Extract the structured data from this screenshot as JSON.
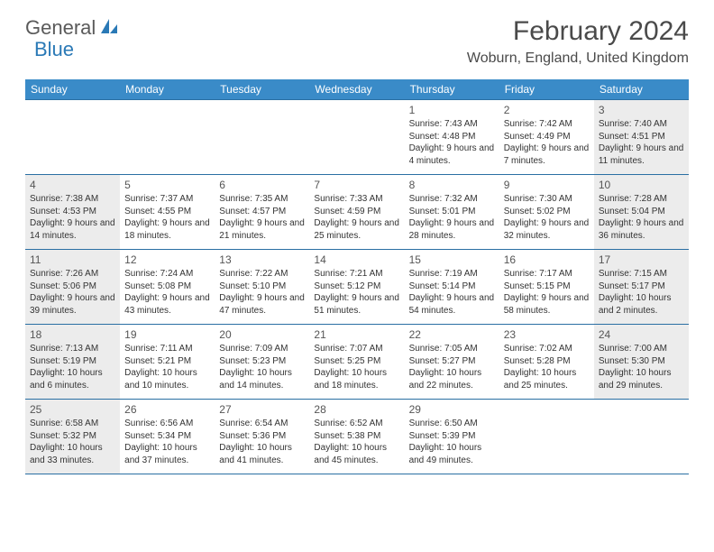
{
  "logo": {
    "part1": "General",
    "part2": "Blue"
  },
  "title": "February 2024",
  "location": "Woburn, England, United Kingdom",
  "colors": {
    "header_bg": "#3a8bc8",
    "header_text": "#ffffff",
    "rule": "#2a6fa3",
    "shaded": "#ececec",
    "logo_blue": "#2a79b6",
    "logo_gray": "#5a5a5a"
  },
  "day_names": [
    "Sunday",
    "Monday",
    "Tuesday",
    "Wednesday",
    "Thursday",
    "Friday",
    "Saturday"
  ],
  "weeks": [
    [
      {
        "blank": true
      },
      {
        "blank": true
      },
      {
        "blank": true
      },
      {
        "blank": true
      },
      {
        "num": "1",
        "sunrise": "Sunrise: 7:43 AM",
        "sunset": "Sunset: 4:48 PM",
        "daylight": "Daylight: 9 hours and 4 minutes."
      },
      {
        "num": "2",
        "sunrise": "Sunrise: 7:42 AM",
        "sunset": "Sunset: 4:49 PM",
        "daylight": "Daylight: 9 hours and 7 minutes."
      },
      {
        "num": "3",
        "sunrise": "Sunrise: 7:40 AM",
        "sunset": "Sunset: 4:51 PM",
        "daylight": "Daylight: 9 hours and 11 minutes.",
        "shaded": true
      }
    ],
    [
      {
        "num": "4",
        "sunrise": "Sunrise: 7:38 AM",
        "sunset": "Sunset: 4:53 PM",
        "daylight": "Daylight: 9 hours and 14 minutes.",
        "shaded": true
      },
      {
        "num": "5",
        "sunrise": "Sunrise: 7:37 AM",
        "sunset": "Sunset: 4:55 PM",
        "daylight": "Daylight: 9 hours and 18 minutes."
      },
      {
        "num": "6",
        "sunrise": "Sunrise: 7:35 AM",
        "sunset": "Sunset: 4:57 PM",
        "daylight": "Daylight: 9 hours and 21 minutes."
      },
      {
        "num": "7",
        "sunrise": "Sunrise: 7:33 AM",
        "sunset": "Sunset: 4:59 PM",
        "daylight": "Daylight: 9 hours and 25 minutes."
      },
      {
        "num": "8",
        "sunrise": "Sunrise: 7:32 AM",
        "sunset": "Sunset: 5:01 PM",
        "daylight": "Daylight: 9 hours and 28 minutes."
      },
      {
        "num": "9",
        "sunrise": "Sunrise: 7:30 AM",
        "sunset": "Sunset: 5:02 PM",
        "daylight": "Daylight: 9 hours and 32 minutes."
      },
      {
        "num": "10",
        "sunrise": "Sunrise: 7:28 AM",
        "sunset": "Sunset: 5:04 PM",
        "daylight": "Daylight: 9 hours and 36 minutes.",
        "shaded": true
      }
    ],
    [
      {
        "num": "11",
        "sunrise": "Sunrise: 7:26 AM",
        "sunset": "Sunset: 5:06 PM",
        "daylight": "Daylight: 9 hours and 39 minutes.",
        "shaded": true
      },
      {
        "num": "12",
        "sunrise": "Sunrise: 7:24 AM",
        "sunset": "Sunset: 5:08 PM",
        "daylight": "Daylight: 9 hours and 43 minutes."
      },
      {
        "num": "13",
        "sunrise": "Sunrise: 7:22 AM",
        "sunset": "Sunset: 5:10 PM",
        "daylight": "Daylight: 9 hours and 47 minutes."
      },
      {
        "num": "14",
        "sunrise": "Sunrise: 7:21 AM",
        "sunset": "Sunset: 5:12 PM",
        "daylight": "Daylight: 9 hours and 51 minutes."
      },
      {
        "num": "15",
        "sunrise": "Sunrise: 7:19 AM",
        "sunset": "Sunset: 5:14 PM",
        "daylight": "Daylight: 9 hours and 54 minutes."
      },
      {
        "num": "16",
        "sunrise": "Sunrise: 7:17 AM",
        "sunset": "Sunset: 5:15 PM",
        "daylight": "Daylight: 9 hours and 58 minutes."
      },
      {
        "num": "17",
        "sunrise": "Sunrise: 7:15 AM",
        "sunset": "Sunset: 5:17 PM",
        "daylight": "Daylight: 10 hours and 2 minutes.",
        "shaded": true
      }
    ],
    [
      {
        "num": "18",
        "sunrise": "Sunrise: 7:13 AM",
        "sunset": "Sunset: 5:19 PM",
        "daylight": "Daylight: 10 hours and 6 minutes.",
        "shaded": true
      },
      {
        "num": "19",
        "sunrise": "Sunrise: 7:11 AM",
        "sunset": "Sunset: 5:21 PM",
        "daylight": "Daylight: 10 hours and 10 minutes."
      },
      {
        "num": "20",
        "sunrise": "Sunrise: 7:09 AM",
        "sunset": "Sunset: 5:23 PM",
        "daylight": "Daylight: 10 hours and 14 minutes."
      },
      {
        "num": "21",
        "sunrise": "Sunrise: 7:07 AM",
        "sunset": "Sunset: 5:25 PM",
        "daylight": "Daylight: 10 hours and 18 minutes."
      },
      {
        "num": "22",
        "sunrise": "Sunrise: 7:05 AM",
        "sunset": "Sunset: 5:27 PM",
        "daylight": "Daylight: 10 hours and 22 minutes."
      },
      {
        "num": "23",
        "sunrise": "Sunrise: 7:02 AM",
        "sunset": "Sunset: 5:28 PM",
        "daylight": "Daylight: 10 hours and 25 minutes."
      },
      {
        "num": "24",
        "sunrise": "Sunrise: 7:00 AM",
        "sunset": "Sunset: 5:30 PM",
        "daylight": "Daylight: 10 hours and 29 minutes.",
        "shaded": true
      }
    ],
    [
      {
        "num": "25",
        "sunrise": "Sunrise: 6:58 AM",
        "sunset": "Sunset: 5:32 PM",
        "daylight": "Daylight: 10 hours and 33 minutes.",
        "shaded": true
      },
      {
        "num": "26",
        "sunrise": "Sunrise: 6:56 AM",
        "sunset": "Sunset: 5:34 PM",
        "daylight": "Daylight: 10 hours and 37 minutes."
      },
      {
        "num": "27",
        "sunrise": "Sunrise: 6:54 AM",
        "sunset": "Sunset: 5:36 PM",
        "daylight": "Daylight: 10 hours and 41 minutes."
      },
      {
        "num": "28",
        "sunrise": "Sunrise: 6:52 AM",
        "sunset": "Sunset: 5:38 PM",
        "daylight": "Daylight: 10 hours and 45 minutes."
      },
      {
        "num": "29",
        "sunrise": "Sunrise: 6:50 AM",
        "sunset": "Sunset: 5:39 PM",
        "daylight": "Daylight: 10 hours and 49 minutes."
      },
      {
        "blank": true
      },
      {
        "blank": true
      }
    ]
  ]
}
